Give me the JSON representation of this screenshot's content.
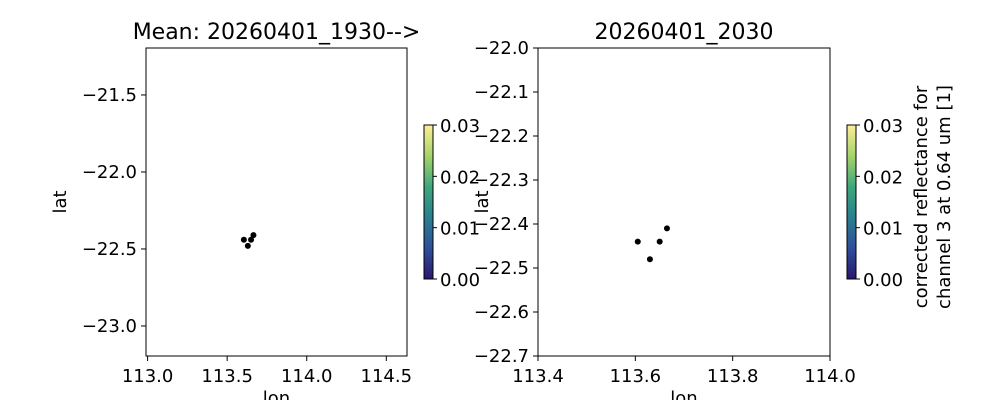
{
  "chart_data": [
    {
      "type": "scatter",
      "title": "Mean: 20260401_1930-->",
      "xlabel": "lon",
      "ylabel": "lat",
      "xlim": [
        112.99,
        114.63
      ],
      "ylim": [
        -23.195,
        -21.195
      ],
      "xticks": [
        113.0,
        113.5,
        114.0,
        114.5
      ],
      "xtick_labels": [
        "113.0",
        "113.5",
        "114.0",
        "114.5"
      ],
      "yticks": [
        -21.5,
        -22.0,
        -22.5,
        -23.0
      ],
      "ytick_labels": [
        "−21.5",
        "−22.0",
        "−22.5",
        "−23.0"
      ],
      "points": [
        {
          "x": 113.605,
          "y": -22.44
        },
        {
          "x": 113.63,
          "y": -22.48
        },
        {
          "x": 113.65,
          "y": -22.44
        },
        {
          "x": 113.665,
          "y": -22.41
        }
      ],
      "point_color": "#000000",
      "grid": false,
      "colorbar": {
        "range": [
          0,
          0.03
        ],
        "ticks": [
          "0.00",
          "0.01",
          "0.02",
          "0.03"
        ],
        "label": "",
        "colormap": [
          "#2a186c",
          "#2f4f9a",
          "#2a7f8e",
          "#3fa77d",
          "#a6d36a",
          "#fdee99"
        ]
      }
    },
    {
      "type": "scatter",
      "title": "20260401_2030",
      "xlabel": "lon",
      "ylabel": "lat",
      "xlim": [
        113.4,
        114.0
      ],
      "ylim": [
        -22.7,
        -22.0
      ],
      "xticks": [
        113.4,
        113.6,
        113.8,
        114.0
      ],
      "xtick_labels": [
        "113.4",
        "113.6",
        "113.8",
        "114.0"
      ],
      "yticks": [
        -22.0,
        -22.1,
        -22.2,
        -22.3,
        -22.4,
        -22.5,
        -22.6,
        -22.7
      ],
      "ytick_labels": [
        "−22.0",
        "−22.1",
        "−22.2",
        "−22.3",
        "−22.4",
        "−22.5",
        "−22.6",
        "−22.7"
      ],
      "points": [
        {
          "x": 113.605,
          "y": -22.44
        },
        {
          "x": 113.63,
          "y": -22.48
        },
        {
          "x": 113.65,
          "y": -22.44
        },
        {
          "x": 113.665,
          "y": -22.41
        }
      ],
      "point_color": "#000000",
      "grid": false,
      "colorbar": {
        "range": [
          0,
          0.03
        ],
        "ticks": [
          "0.00",
          "0.01",
          "0.02",
          "0.03"
        ],
        "label_lines": [
          "corrected reflectance for",
          "channel 3 at 0.64 um [1]"
        ],
        "colormap": [
          "#2a186c",
          "#2f4f9a",
          "#2a7f8e",
          "#3fa77d",
          "#a6d36a",
          "#fdee99"
        ]
      }
    }
  ]
}
